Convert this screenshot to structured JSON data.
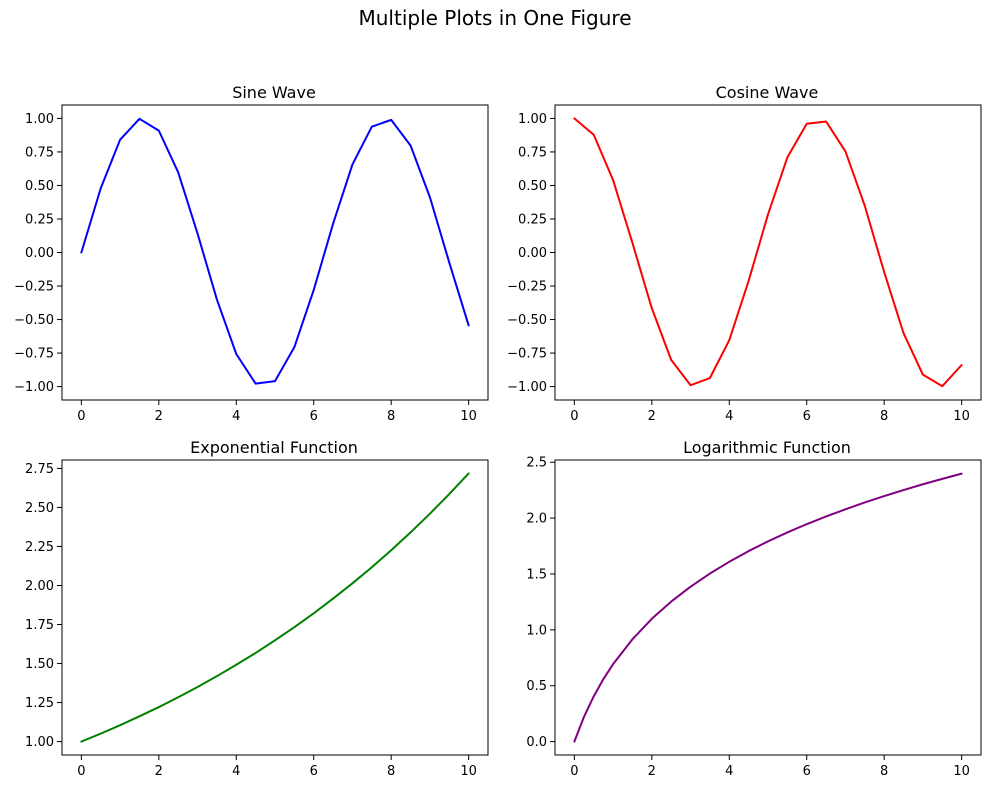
{
  "figure": {
    "suptitle": "Multiple Plots in One Figure"
  },
  "chart_data": [
    {
      "type": "line",
      "title": "Sine Wave",
      "xlabel": "",
      "ylabel": "",
      "xlim": [
        -0.5,
        10.5
      ],
      "ylim": [
        -1.1,
        1.1
      ],
      "xticks": [
        0,
        2,
        4,
        6,
        8,
        10
      ],
      "xtick_labels": [
        "0",
        "2",
        "4",
        "6",
        "8",
        "10"
      ],
      "yticks": [
        -1.0,
        -0.75,
        -0.5,
        -0.25,
        0.0,
        0.25,
        0.5,
        0.75,
        1.0
      ],
      "ytick_labels": [
        "−1.00",
        "−0.75",
        "−0.50",
        "−0.25",
        "0.00",
        "0.25",
        "0.50",
        "0.75",
        "1.00"
      ],
      "grid": false,
      "series": [
        {
          "color": "#0000ff",
          "x": [
            0,
            0.5,
            1,
            1.5,
            2,
            2.5,
            3,
            3.5,
            4,
            4.5,
            5,
            5.5,
            6,
            6.5,
            7,
            7.5,
            8,
            8.5,
            9,
            9.5,
            10
          ],
          "y": [
            0.0,
            0.479,
            0.841,
            0.997,
            0.909,
            0.598,
            0.141,
            -0.351,
            -0.757,
            -0.978,
            -0.959,
            -0.706,
            -0.279,
            0.215,
            0.657,
            0.938,
            0.989,
            0.798,
            0.412,
            -0.075,
            -0.544
          ]
        }
      ]
    },
    {
      "type": "line",
      "title": "Cosine Wave",
      "xlabel": "",
      "ylabel": "",
      "xlim": [
        -0.5,
        10.5
      ],
      "ylim": [
        -1.1,
        1.1
      ],
      "xticks": [
        0,
        2,
        4,
        6,
        8,
        10
      ],
      "xtick_labels": [
        "0",
        "2",
        "4",
        "6",
        "8",
        "10"
      ],
      "yticks": [
        -1.0,
        -0.75,
        -0.5,
        -0.25,
        0.0,
        0.25,
        0.5,
        0.75,
        1.0
      ],
      "ytick_labels": [
        "−1.00",
        "−0.75",
        "−0.50",
        "−0.25",
        "0.00",
        "0.25",
        "0.50",
        "0.75",
        "1.00"
      ],
      "grid": false,
      "series": [
        {
          "color": "#ff0000",
          "x": [
            0,
            0.5,
            1,
            1.5,
            2,
            2.5,
            3,
            3.5,
            4,
            4.5,
            5,
            5.5,
            6,
            6.5,
            7,
            7.5,
            8,
            8.5,
            9,
            9.5,
            10
          ],
          "y": [
            1.0,
            0.878,
            0.54,
            0.071,
            -0.416,
            -0.801,
            -0.99,
            -0.936,
            -0.654,
            -0.211,
            0.284,
            0.709,
            0.96,
            0.977,
            0.754,
            0.347,
            -0.146,
            -0.602,
            -0.911,
            -0.997,
            -0.839
          ]
        }
      ]
    },
    {
      "type": "line",
      "title": "Exponential Function",
      "xlabel": "",
      "ylabel": "",
      "xlim": [
        -0.5,
        10.5
      ],
      "ylim": [
        0.914,
        2.804
      ],
      "xticks": [
        0,
        2,
        4,
        6,
        8,
        10
      ],
      "xtick_labels": [
        "0",
        "2",
        "4",
        "6",
        "8",
        "10"
      ],
      "yticks": [
        1.0,
        1.25,
        1.5,
        1.75,
        2.0,
        2.25,
        2.5,
        2.75
      ],
      "ytick_labels": [
        "1.00",
        "1.25",
        "1.50",
        "1.75",
        "2.00",
        "2.25",
        "2.50",
        "2.75"
      ],
      "grid": false,
      "series": [
        {
          "color": "#008000",
          "x": [
            0,
            0.5,
            1,
            1.5,
            2,
            2.5,
            3,
            3.5,
            4,
            4.5,
            5,
            5.5,
            6,
            6.5,
            7,
            7.5,
            8,
            8.5,
            9,
            9.5,
            10
          ],
          "y": [
            1.0,
            1.051,
            1.105,
            1.162,
            1.221,
            1.284,
            1.35,
            1.419,
            1.492,
            1.568,
            1.649,
            1.733,
            1.822,
            1.916,
            2.014,
            2.117,
            2.226,
            2.34,
            2.46,
            2.586,
            2.718
          ]
        }
      ]
    },
    {
      "type": "line",
      "title": "Logarithmic Function",
      "xlabel": "",
      "ylabel": "",
      "xlim": [
        -0.5,
        10.5
      ],
      "ylim": [
        -0.12,
        2.52
      ],
      "xticks": [
        0,
        2,
        4,
        6,
        8,
        10
      ],
      "xtick_labels": [
        "0",
        "2",
        "4",
        "6",
        "8",
        "10"
      ],
      "yticks": [
        0.0,
        0.5,
        1.0,
        1.5,
        2.0,
        2.5
      ],
      "ytick_labels": [
        "0.0",
        "0.5",
        "1.0",
        "1.5",
        "2.0",
        "2.5"
      ],
      "grid": false,
      "series": [
        {
          "color": "#800080",
          "x": [
            0,
            0.25,
            0.5,
            0.75,
            1,
            1.5,
            2,
            2.5,
            3,
            3.5,
            4,
            4.5,
            5,
            5.5,
            6,
            6.5,
            7,
            7.5,
            8,
            8.5,
            9,
            9.5,
            10
          ],
          "y": [
            0.0,
            0.223,
            0.405,
            0.56,
            0.693,
            0.916,
            1.099,
            1.253,
            1.386,
            1.504,
            1.609,
            1.705,
            1.792,
            1.872,
            1.946,
            2.015,
            2.079,
            2.14,
            2.197,
            2.251,
            2.303,
            2.351,
            2.398
          ]
        }
      ]
    }
  ]
}
